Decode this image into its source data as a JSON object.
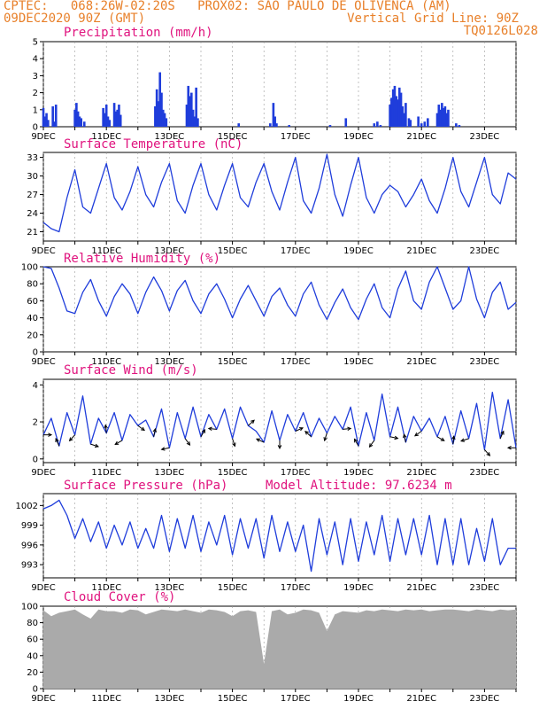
{
  "header": {
    "line1_left": "CPTEC:   068:26W-02:20S   PROX02: SAO PAULO DE OLIVENCA (AM)",
    "line2_left": "09DEC2020 90Z (GMT)",
    "line2_right": "Vertical Grid Line: 90Z",
    "line3_right": "TQ0126L028",
    "color": "#e8802a"
  },
  "colors": {
    "title": "#e0137e",
    "series": "#1f3ddb",
    "bars": "#1f3ddb",
    "cloud": "#aaaaaa"
  },
  "x_ticks": [
    "9DEC",
    "11DEC",
    "13DEC",
    "15DEC",
    "17DEC",
    "19DEC",
    "21DEC",
    "23DEC"
  ],
  "x_range_days": [
    0,
    15
  ],
  "chart_data": [
    {
      "type": "bar",
      "title": "Precipitation (mm/h)",
      "ylim": [
        0,
        5
      ],
      "yticks": [
        0,
        1,
        2,
        3,
        4,
        5
      ],
      "x_days": [
        0.0,
        0.05,
        0.1,
        0.15,
        0.3,
        0.35,
        0.4,
        1.0,
        1.05,
        1.1,
        1.15,
        1.2,
        1.3,
        1.9,
        1.95,
        2.0,
        2.05,
        2.1,
        2.25,
        2.3,
        2.35,
        2.4,
        2.45,
        3.55,
        3.6,
        3.65,
        3.7,
        3.75,
        3.8,
        3.85,
        3.9,
        4.55,
        4.6,
        4.65,
        4.7,
        4.75,
        4.8,
        4.85,
        4.9,
        6.2,
        7.2,
        7.3,
        7.35,
        7.4,
        7.8,
        9.1,
        9.6,
        10.5,
        10.6,
        10.7,
        11.0,
        11.05,
        11.1,
        11.15,
        11.2,
        11.25,
        11.3,
        11.35,
        11.4,
        11.45,
        11.5,
        11.6,
        11.65,
        11.9,
        12.0,
        12.1,
        12.2,
        12.5,
        12.55,
        12.6,
        12.65,
        12.7,
        12.75,
        12.8,
        12.85,
        13.1,
        13.2
      ],
      "values": [
        1.1,
        0.6,
        0.8,
        0.4,
        1.2,
        0.3,
        1.3,
        1.0,
        1.4,
        0.9,
        0.6,
        0.5,
        0.3,
        1.1,
        0.8,
        1.3,
        0.6,
        0.4,
        1.4,
        0.9,
        1.0,
        1.3,
        0.7,
        1.2,
        2.2,
        1.5,
        3.2,
        2.0,
        1.0,
        0.8,
        0.5,
        1.3,
        2.4,
        1.8,
        2.0,
        1.0,
        0.6,
        2.3,
        0.5,
        0.2,
        0.2,
        1.4,
        0.6,
        0.2,
        0.1,
        0.1,
        0.5,
        0.2,
        0.3,
        0.1,
        1.3,
        1.7,
        2.2,
        2.4,
        1.8,
        1.6,
        2.3,
        2.0,
        1.2,
        0.8,
        1.4,
        0.5,
        0.4,
        0.6,
        0.2,
        0.3,
        0.5,
        0.8,
        1.3,
        1.0,
        1.4,
        1.1,
        1.2,
        0.8,
        1.0,
        0.2,
        0.1
      ]
    },
    {
      "type": "line",
      "title": "Surface Temperature (nC)",
      "ylim": [
        19.5,
        33.8
      ],
      "yticks": [
        21,
        24,
        27,
        30,
        33
      ],
      "x_days": [
        0.0,
        0.25,
        0.5,
        0.75,
        1.0,
        1.25,
        1.5,
        1.75,
        2.0,
        2.25,
        2.5,
        2.75,
        3.0,
        3.25,
        3.5,
        3.75,
        4.0,
        4.25,
        4.5,
        4.75,
        5.0,
        5.25,
        5.5,
        5.75,
        6.0,
        6.25,
        6.5,
        6.75,
        7.0,
        7.25,
        7.5,
        7.75,
        8.0,
        8.25,
        8.5,
        8.75,
        9.0,
        9.25,
        9.5,
        9.75,
        10.0,
        10.25,
        10.5,
        10.75,
        11.0,
        11.25,
        11.5,
        11.75,
        12.0,
        12.25,
        12.5,
        12.75,
        13.0,
        13.25,
        13.5,
        13.75,
        14.0,
        14.25,
        14.5,
        14.75,
        15.0
      ],
      "values": [
        22.5,
        21.5,
        21.0,
        26.5,
        31.0,
        25.0,
        24.0,
        28.0,
        32.0,
        26.5,
        24.5,
        27.5,
        31.5,
        27.0,
        25.0,
        29.0,
        32.0,
        26.0,
        24.0,
        28.5,
        32.0,
        27.0,
        24.5,
        28.5,
        32.0,
        26.5,
        25.0,
        29.0,
        32.0,
        27.5,
        24.5,
        29.0,
        33.0,
        26.0,
        24.0,
        28.0,
        33.5,
        27.0,
        23.5,
        28.5,
        33.0,
        26.5,
        24.0,
        27.0,
        28.5,
        27.5,
        25.0,
        27.0,
        29.5,
        26.0,
        24.0,
        28.0,
        33.0,
        27.5,
        25.0,
        29.0,
        33.0,
        27.0,
        25.5,
        30.5,
        29.5
      ]
    },
    {
      "type": "line",
      "title": "Relative Humidity (%)",
      "ylim": [
        0,
        100
      ],
      "yticks": [
        0,
        20,
        40,
        60,
        80,
        100
      ],
      "x_days": [
        0.0,
        0.25,
        0.5,
        0.75,
        1.0,
        1.25,
        1.5,
        1.75,
        2.0,
        2.25,
        2.5,
        2.75,
        3.0,
        3.25,
        3.5,
        3.75,
        4.0,
        4.25,
        4.5,
        4.75,
        5.0,
        5.25,
        5.5,
        5.75,
        6.0,
        6.25,
        6.5,
        6.75,
        7.0,
        7.25,
        7.5,
        7.75,
        8.0,
        8.25,
        8.5,
        8.75,
        9.0,
        9.25,
        9.5,
        9.75,
        10.0,
        10.25,
        10.5,
        10.75,
        11.0,
        11.25,
        11.5,
        11.75,
        12.0,
        12.25,
        12.5,
        12.75,
        13.0,
        13.25,
        13.5,
        13.75,
        14.0,
        14.25,
        14.5,
        14.75,
        15.0
      ],
      "values": [
        100,
        98,
        75,
        48,
        45,
        70,
        85,
        60,
        42,
        65,
        80,
        68,
        45,
        70,
        88,
        72,
        48,
        72,
        84,
        60,
        45,
        68,
        80,
        62,
        40,
        62,
        78,
        60,
        42,
        65,
        75,
        55,
        42,
        68,
        82,
        55,
        38,
        58,
        74,
        52,
        38,
        62,
        80,
        52,
        40,
        74,
        95,
        60,
        50,
        82,
        100,
        75,
        50,
        60,
        100,
        62,
        40,
        70,
        82,
        50,
        58
      ]
    },
    {
      "type": "line",
      "title": "Surface Wind (m/s)",
      "ylim": [
        -0.2,
        4.3
      ],
      "yticks": [
        0,
        2,
        4
      ],
      "x_days": [
        0.0,
        0.25,
        0.5,
        0.75,
        1.0,
        1.25,
        1.5,
        1.75,
        2.0,
        2.25,
        2.5,
        2.75,
        3.0,
        3.25,
        3.5,
        3.75,
        4.0,
        4.25,
        4.5,
        4.75,
        5.0,
        5.25,
        5.5,
        5.75,
        6.0,
        6.25,
        6.5,
        6.75,
        7.0,
        7.25,
        7.5,
        7.75,
        8.0,
        8.25,
        8.5,
        8.75,
        9.0,
        9.25,
        9.5,
        9.75,
        10.0,
        10.25,
        10.5,
        10.75,
        11.0,
        11.25,
        11.5,
        11.75,
        12.0,
        12.25,
        12.5,
        12.75,
        13.0,
        13.25,
        13.5,
        13.75,
        14.0,
        14.25,
        14.5,
        14.75,
        15.0
      ],
      "values": [
        1.3,
        2.2,
        0.7,
        2.5,
        1.3,
        3.4,
        0.8,
        2.2,
        1.4,
        2.5,
        1.0,
        2.4,
        1.8,
        2.1,
        1.2,
        2.7,
        0.6,
        2.5,
        1.1,
        2.8,
        1.2,
        2.4,
        1.6,
        2.7,
        1.1,
        2.8,
        1.8,
        1.5,
        0.9,
        2.6,
        1.0,
        2.4,
        1.5,
        2.5,
        1.2,
        2.2,
        1.4,
        2.3,
        1.6,
        2.8,
        0.7,
        2.5,
        1.0,
        3.5,
        1.2,
        2.8,
        0.9,
        2.3,
        1.5,
        2.2,
        1.2,
        2.3,
        0.8,
        2.6,
        1.1,
        3.0,
        0.5,
        3.6,
        1.1,
        3.2,
        0.6
      ]
    },
    {
      "type": "line",
      "title": "Surface Pressure (hPa)",
      "annotation": "Model Altitude: 97.6234 m",
      "ylim": [
        991,
        1003.8
      ],
      "yticks": [
        993,
        996,
        999,
        1002
      ],
      "x_days": [
        0.0,
        0.25,
        0.5,
        0.75,
        1.0,
        1.25,
        1.5,
        1.75,
        2.0,
        2.25,
        2.5,
        2.75,
        3.0,
        3.25,
        3.5,
        3.75,
        4.0,
        4.25,
        4.5,
        4.75,
        5.0,
        5.25,
        5.5,
        5.75,
        6.0,
        6.25,
        6.5,
        6.75,
        7.0,
        7.25,
        7.5,
        7.75,
        8.0,
        8.25,
        8.5,
        8.75,
        9.0,
        9.25,
        9.5,
        9.75,
        10.0,
        10.25,
        10.5,
        10.75,
        11.0,
        11.25,
        11.5,
        11.75,
        12.0,
        12.25,
        12.5,
        12.75,
        13.0,
        13.25,
        13.5,
        13.75,
        14.0,
        14.25,
        14.5,
        14.75,
        15.0
      ],
      "values": [
        1001.5,
        1002.0,
        1002.8,
        1000.5,
        997.0,
        1000.0,
        996.5,
        999.5,
        995.5,
        999.0,
        996.0,
        999.5,
        995.5,
        998.5,
        995.5,
        1000.5,
        995.0,
        1000.0,
        995.5,
        1000.5,
        995.0,
        999.5,
        996.0,
        1000.5,
        994.5,
        1000.0,
        995.5,
        1000.0,
        994.0,
        1000.5,
        995.0,
        999.5,
        995.0,
        999.0,
        992.0,
        1000.0,
        994.5,
        999.5,
        993.0,
        1000.0,
        993.5,
        999.5,
        994.5,
        1000.5,
        993.5,
        1000.0,
        994.5,
        1000.0,
        994.5,
        1000.5,
        993.0,
        1000.0,
        993.0,
        1000.0,
        993.0,
        998.5,
        993.5,
        1000.0,
        993.0,
        995.5,
        995.5
      ]
    },
    {
      "type": "area",
      "title": "Cloud Cover (%)",
      "ylim": [
        0,
        100
      ],
      "yticks": [
        0,
        20,
        40,
        60,
        80,
        100
      ],
      "x_days": [
        0.0,
        0.25,
        0.5,
        0.75,
        1.0,
        1.25,
        1.5,
        1.75,
        2.0,
        2.25,
        2.5,
        2.75,
        3.0,
        3.25,
        3.5,
        3.75,
        4.0,
        4.25,
        4.5,
        4.75,
        5.0,
        5.25,
        5.5,
        5.75,
        6.0,
        6.25,
        6.5,
        6.75,
        7.0,
        7.25,
        7.5,
        7.75,
        8.0,
        8.25,
        8.5,
        8.75,
        9.0,
        9.25,
        9.5,
        9.75,
        10.0,
        10.25,
        10.5,
        10.75,
        11.0,
        11.25,
        11.5,
        11.75,
        12.0,
        12.25,
        12.5,
        12.75,
        13.0,
        13.25,
        13.5,
        13.75,
        14.0,
        14.25,
        14.5,
        14.75,
        15.0
      ],
      "values": [
        95,
        88,
        92,
        94,
        96,
        90,
        85,
        96,
        94,
        94,
        92,
        96,
        95,
        90,
        93,
        96,
        95,
        94,
        96,
        94,
        92,
        96,
        95,
        93,
        88,
        94,
        95,
        93,
        30,
        94,
        96,
        90,
        92,
        96,
        95,
        92,
        70,
        90,
        94,
        93,
        92,
        95,
        94,
        96,
        95,
        94,
        96,
        95,
        96,
        94,
        95,
        96,
        96,
        95,
        94,
        96,
        95,
        94,
        96,
        95,
        96
      ]
    }
  ]
}
